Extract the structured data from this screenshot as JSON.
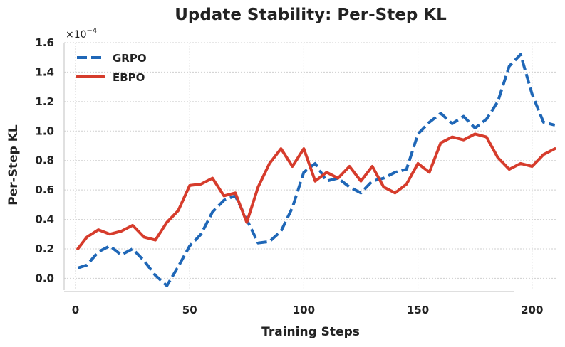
{
  "chart_data": {
    "type": "line",
    "title": "Update Stability: Per-Step KL",
    "xlabel": "Training Steps",
    "ylabel": "Per-Step KL",
    "scale_label": "×10",
    "scale_exponent": "−4",
    "xlim": [
      -5,
      211
    ],
    "ylim": [
      -0.08,
      1.6
    ],
    "xticks": [
      0,
      50,
      100,
      150,
      200
    ],
    "yticks": [
      0.0,
      0.2,
      0.4,
      0.6,
      0.8,
      1.0,
      1.2,
      1.4,
      1.6
    ],
    "ytick_labels": [
      "0.0",
      "0.2",
      "0.4",
      "0.6",
      "0.8",
      "1.0",
      "1.2",
      "1.4",
      "1.6"
    ],
    "grid": true,
    "legend_position": "top-left",
    "x": [
      1,
      5,
      10,
      15,
      20,
      25,
      30,
      35,
      40,
      45,
      50,
      55,
      60,
      65,
      70,
      75,
      80,
      85,
      90,
      95,
      100,
      105,
      110,
      115,
      120,
      125,
      130,
      135,
      140,
      145,
      150,
      155,
      160,
      165,
      170,
      175,
      180,
      185,
      190,
      195,
      200,
      205,
      210
    ],
    "series": [
      {
        "name": "GRPO",
        "color": "#1f67b7",
        "style": "dashed",
        "values": [
          0.07,
          0.09,
          0.18,
          0.22,
          0.16,
          0.2,
          0.12,
          0.02,
          -0.05,
          0.08,
          0.22,
          0.3,
          0.45,
          0.53,
          0.56,
          0.4,
          0.24,
          0.25,
          0.32,
          0.48,
          0.72,
          0.78,
          0.66,
          0.68,
          0.62,
          0.58,
          0.66,
          0.68,
          0.72,
          0.74,
          0.98,
          1.06,
          1.12,
          1.05,
          1.1,
          1.02,
          1.08,
          1.2,
          1.44,
          1.52,
          1.25,
          1.06,
          1.04
        ]
      },
      {
        "name": "EBPO",
        "color": "#d63c2c",
        "style": "solid",
        "values": [
          0.2,
          0.28,
          0.33,
          0.3,
          0.32,
          0.36,
          0.28,
          0.26,
          0.38,
          0.46,
          0.63,
          0.64,
          0.68,
          0.56,
          0.58,
          0.38,
          0.62,
          0.78,
          0.88,
          0.76,
          0.88,
          0.66,
          0.72,
          0.68,
          0.76,
          0.66,
          0.76,
          0.62,
          0.58,
          0.64,
          0.78,
          0.72,
          0.92,
          0.96,
          0.94,
          0.98,
          0.96,
          0.82,
          0.74,
          0.78,
          0.76,
          0.84,
          0.88
        ]
      }
    ]
  }
}
